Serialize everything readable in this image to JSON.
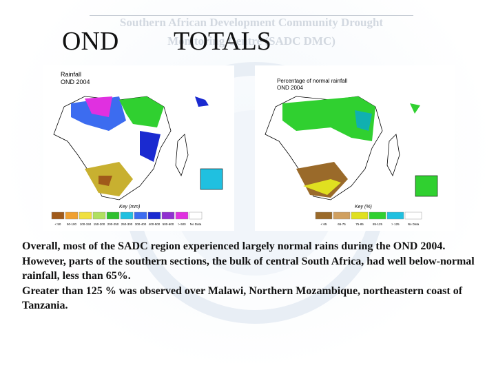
{
  "header": {
    "watermark_line1": "Southern African Development Community Drought",
    "watermark_line2": "Monitoring Centre (SADC DMC)",
    "title_left": "OND",
    "title_right": "TOTALS"
  },
  "maps": [
    {
      "title": "Rainfall",
      "subtitle": "OND 2004",
      "key_title": "Key (mm)",
      "legend": [
        "< 50",
        "50-100",
        "100-150",
        "150-200",
        "200-250",
        "250-300",
        "300-400",
        "400-500",
        "500-600",
        "> 600",
        "No Data"
      ]
    },
    {
      "title": "Percentage of normal rainfall",
      "subtitle": "OND 2004",
      "key_title": "Key (%)",
      "legend": [
        "< 65",
        "65-75",
        "75-85",
        "85-125",
        "> 125",
        "No Data"
      ]
    }
  ],
  "body": {
    "paragraphs": [
      "Overall, most of the SADC region experienced largely normal rains during the OND 2004. However, parts of the southern sections, the bulk of central South Africa, had well below-normal rainfall, less than 65%.",
      "Greater than 125 % was observed over Malawi, Northern Mozambique, northeastern coast of Tanzania."
    ]
  }
}
